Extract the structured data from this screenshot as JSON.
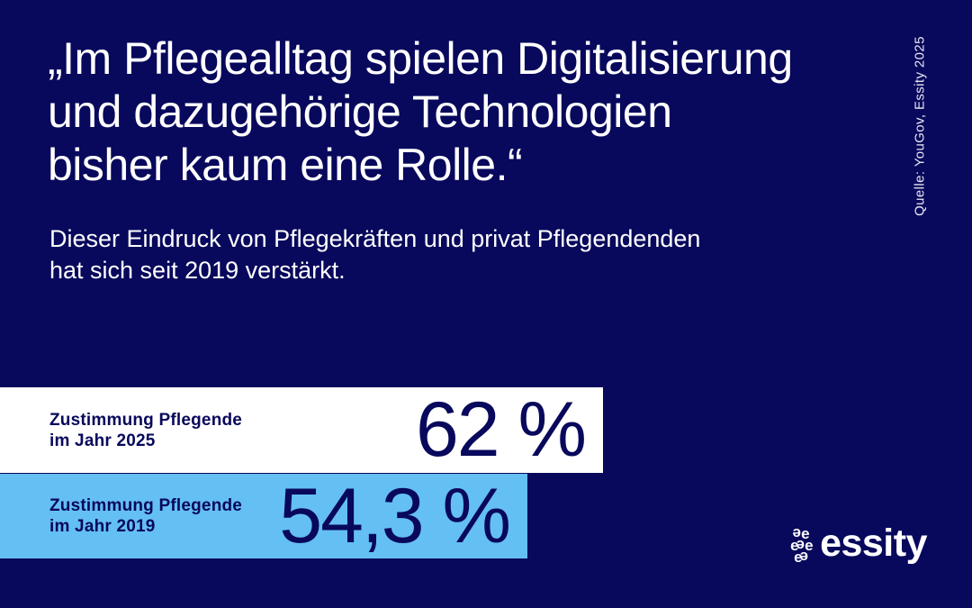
{
  "colors": {
    "background": "#08085C",
    "text_light": "#FFFFFF",
    "text_dark": "#08085C",
    "source_text": "#E9E9F5",
    "bar_2025_bg": "#FFFFFF",
    "bar_2019_bg": "#64BFF3"
  },
  "headline": "„Im Pflegealltag spielen Digitalisierung\nund dazugehörige Technologien\nbisher kaum eine Rolle.“",
  "subheadline": "Dieser Eindruck von Pflegekräften und privat Pflegendenden\nhat sich seit 2019 verstärkt.",
  "source": "Quelle: YouGov, Essity 2025",
  "chart_data": {
    "type": "bar",
    "orientation": "horizontal",
    "categories": [
      "Zustimmung Pflegende im Jahr 2025",
      "Zustimmung Pflegende im Jahr 2019"
    ],
    "values": [
      62,
      54.3
    ],
    "value_labels": [
      "62 %",
      "54,3 %"
    ],
    "unit": "%",
    "xlim": [
      0,
      100
    ],
    "grid": false,
    "legend": "none",
    "bar_colors": [
      "#FFFFFF",
      "#64BFF3"
    ],
    "title": "",
    "xlabel": "",
    "ylabel": ""
  },
  "bars": [
    {
      "label": "Zustimmung Pflegende\nim Jahr 2025",
      "value": 62,
      "value_label": "62 %"
    },
    {
      "label": "Zustimmung Pflegende\nim Jahr 2019",
      "value": 54.3,
      "value_label": "54,3 %"
    }
  ],
  "logo": {
    "mark_rows": [
      "ee",
      "eee",
      "ee"
    ],
    "wordmark": "essity"
  }
}
